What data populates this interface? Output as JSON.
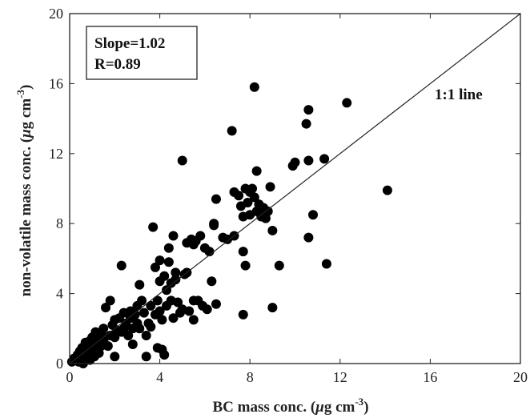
{
  "chart_data": {
    "type": "scatter",
    "title": "",
    "xlabel": {
      "prefix": "BC mass conc. (",
      "mu": "μ",
      "unit": "g cm",
      "exp": "-3",
      "suffix": ")"
    },
    "ylabel": {
      "prefix": "non-volatile mass conc. (",
      "mu": "μ",
      "unit": "g cm",
      "exp": "-3",
      "suffix": ")"
    },
    "xlim": [
      0,
      20
    ],
    "ylim": [
      0,
      20
    ],
    "xticks": [
      "0",
      "4",
      "8",
      "12",
      "16",
      "20"
    ],
    "yticks": [
      "0",
      "4",
      "8",
      "12",
      "16",
      "20"
    ],
    "grid": false,
    "marker_color": "#000000",
    "stats": {
      "slope": "Slope=1.02",
      "r": "R=0.89"
    },
    "reference_line": {
      "label": "1:1 line",
      "slope": 1,
      "intercept": 0
    },
    "points": [
      [
        0.1,
        0.1
      ],
      [
        0.2,
        0.3
      ],
      [
        0.3,
        0.2
      ],
      [
        0.35,
        0.5
      ],
      [
        0.4,
        0.1
      ],
      [
        0.45,
        0.7
      ],
      [
        0.5,
        0.35
      ],
      [
        0.55,
        0.9
      ],
      [
        0.6,
        0.0
      ],
      [
        0.6,
        0.6
      ],
      [
        0.7,
        1.2
      ],
      [
        0.7,
        0.3
      ],
      [
        0.75,
        0.8
      ],
      [
        0.8,
        1.0
      ],
      [
        0.85,
        0.5
      ],
      [
        0.9,
        1.3
      ],
      [
        0.9,
        0.2
      ],
      [
        1.0,
        1.5
      ],
      [
        1.0,
        0.7
      ],
      [
        1.05,
        1.1
      ],
      [
        1.1,
        0.4
      ],
      [
        1.15,
        1.8
      ],
      [
        1.2,
        0.9
      ],
      [
        1.25,
        1.3
      ],
      [
        1.3,
        0.6
      ],
      [
        1.4,
        1.7
      ],
      [
        1.4,
        1.0
      ],
      [
        1.5,
        1.3
      ],
      [
        1.5,
        2.0
      ],
      [
        1.6,
        3.2
      ],
      [
        1.7,
        1.0
      ],
      [
        1.8,
        3.6
      ],
      [
        1.8,
        1.6
      ],
      [
        1.9,
        2.2
      ],
      [
        2.0,
        0.4
      ],
      [
        2.0,
        2.5
      ],
      [
        2.0,
        1.5
      ],
      [
        2.1,
        1.9
      ],
      [
        2.2,
        2.6
      ],
      [
        2.3,
        1.8
      ],
      [
        2.3,
        5.6
      ],
      [
        2.4,
        2.9
      ],
      [
        2.4,
        2.0
      ],
      [
        2.5,
        2.3
      ],
      [
        2.6,
        1.6
      ],
      [
        2.7,
        3.0
      ],
      [
        2.7,
        2.6
      ],
      [
        2.8,
        2.0
      ],
      [
        2.8,
        1.1
      ],
      [
        2.9,
        2.8
      ],
      [
        3.0,
        3.3
      ],
      [
        3.0,
        2.3
      ],
      [
        3.1,
        2.0
      ],
      [
        3.1,
        4.5
      ],
      [
        3.2,
        3.6
      ],
      [
        3.3,
        2.9
      ],
      [
        3.4,
        1.6
      ],
      [
        3.4,
        0.4
      ],
      [
        3.5,
        2.3
      ],
      [
        3.6,
        3.3
      ],
      [
        3.6,
        2.1
      ],
      [
        3.7,
        7.8
      ],
      [
        3.8,
        5.5
      ],
      [
        3.8,
        2.8
      ],
      [
        3.9,
        3.6
      ],
      [
        3.9,
        0.9
      ],
      [
        4.0,
        5.9
      ],
      [
        4.0,
        4.7
      ],
      [
        4.0,
        3.0
      ],
      [
        4.1,
        2.5
      ],
      [
        4.1,
        0.8
      ],
      [
        4.2,
        5.0
      ],
      [
        4.2,
        0.5
      ],
      [
        4.3,
        4.2
      ],
      [
        4.3,
        3.3
      ],
      [
        4.4,
        6.6
      ],
      [
        4.4,
        5.8
      ],
      [
        4.5,
        4.6
      ],
      [
        4.5,
        3.6
      ],
      [
        4.6,
        7.3
      ],
      [
        4.6,
        2.6
      ],
      [
        4.7,
        5.2
      ],
      [
        4.7,
        4.8
      ],
      [
        4.8,
        3.5
      ],
      [
        4.9,
        2.9
      ],
      [
        5.0,
        11.6
      ],
      [
        5.0,
        3.1
      ],
      [
        5.1,
        5.1
      ],
      [
        5.2,
        5.2
      ],
      [
        5.2,
        6.9
      ],
      [
        5.3,
        3.0
      ],
      [
        5.4,
        7.1
      ],
      [
        5.5,
        6.8
      ],
      [
        5.5,
        3.6
      ],
      [
        5.5,
        2.5
      ],
      [
        5.6,
        7.0
      ],
      [
        5.7,
        3.6
      ],
      [
        5.8,
        7.3
      ],
      [
        5.9,
        3.3
      ],
      [
        6.0,
        6.6
      ],
      [
        6.1,
        3.1
      ],
      [
        6.2,
        6.4
      ],
      [
        6.3,
        4.7
      ],
      [
        6.4,
        7.9
      ],
      [
        6.4,
        8.0
      ],
      [
        6.5,
        3.4
      ],
      [
        6.5,
        9.4
      ],
      [
        6.8,
        7.2
      ],
      [
        7.0,
        7.1
      ],
      [
        7.2,
        13.3
      ],
      [
        7.3,
        9.8
      ],
      [
        7.3,
        7.3
      ],
      [
        7.5,
        9.6
      ],
      [
        7.6,
        9.0
      ],
      [
        7.7,
        8.4
      ],
      [
        7.7,
        6.4
      ],
      [
        7.7,
        2.8
      ],
      [
        7.8,
        5.6
      ],
      [
        7.8,
        10.0
      ],
      [
        7.9,
        9.2
      ],
      [
        8.0,
        9.8
      ],
      [
        8.0,
        8.5
      ],
      [
        8.1,
        10.0
      ],
      [
        8.2,
        15.8
      ],
      [
        8.2,
        9.5
      ],
      [
        8.3,
        11.0
      ],
      [
        8.3,
        8.7
      ],
      [
        8.4,
        9.1
      ],
      [
        8.5,
        8.4
      ],
      [
        8.6,
        8.9
      ],
      [
        8.7,
        8.3
      ],
      [
        8.8,
        8.7
      ],
      [
        8.9,
        10.1
      ],
      [
        9.0,
        7.6
      ],
      [
        9.0,
        3.2
      ],
      [
        9.3,
        5.6
      ],
      [
        9.9,
        11.3
      ],
      [
        10.0,
        11.5
      ],
      [
        10.5,
        13.7
      ],
      [
        10.6,
        14.5
      ],
      [
        10.6,
        11.6
      ],
      [
        10.6,
        7.2
      ],
      [
        10.8,
        8.5
      ],
      [
        11.3,
        11.7
      ],
      [
        11.4,
        5.7
      ],
      [
        12.3,
        14.9
      ],
      [
        14.1,
        9.9
      ]
    ]
  }
}
